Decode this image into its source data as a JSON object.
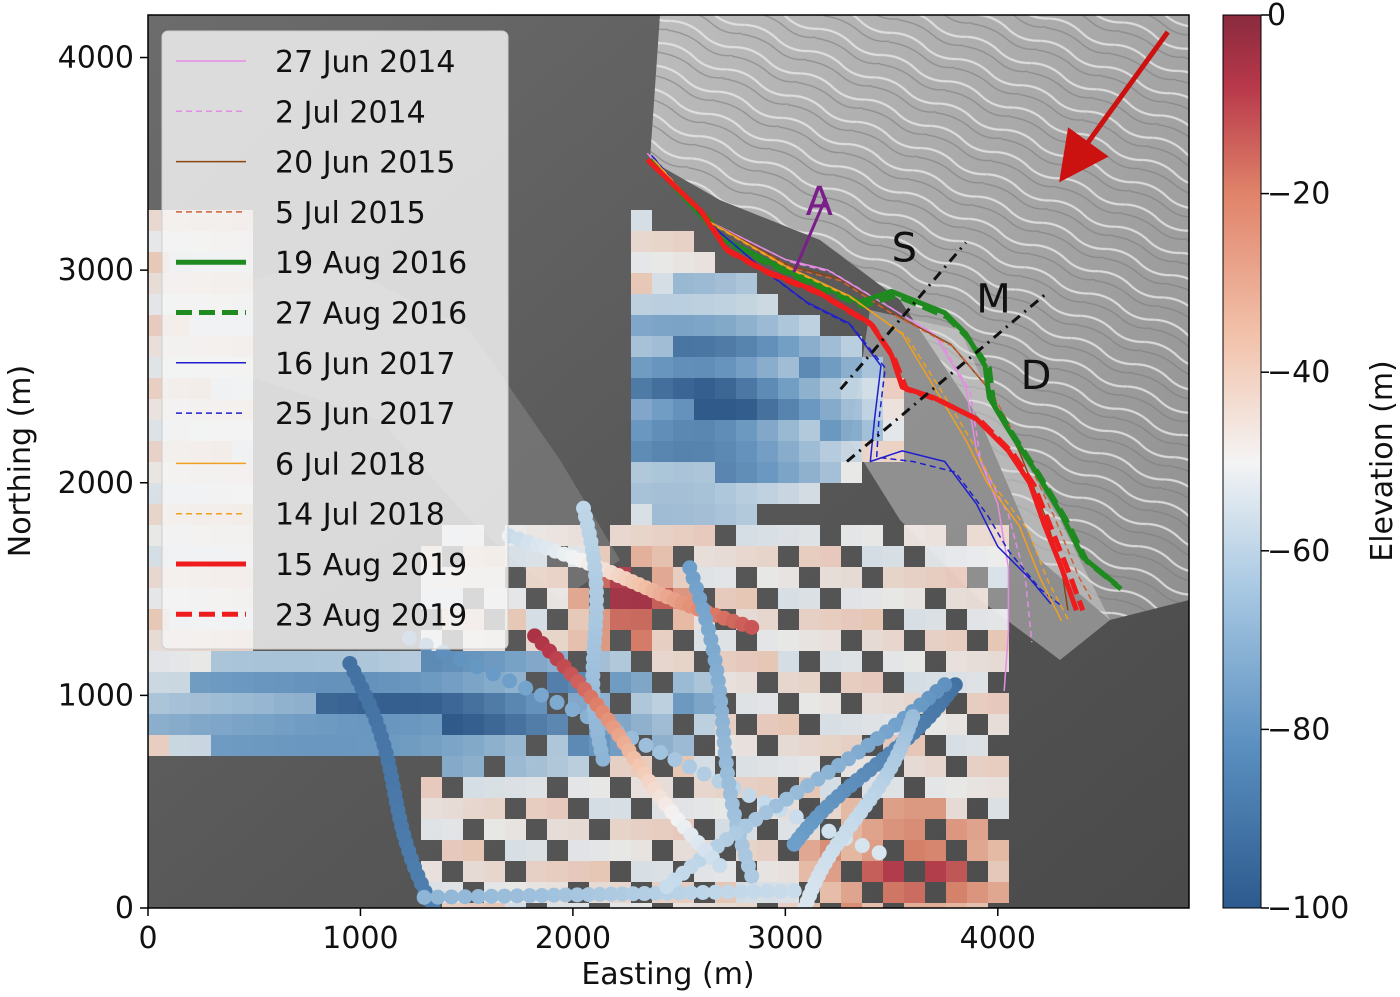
{
  "chart_data": {
    "type": "map",
    "xlabel": "Easting (m)",
    "ylabel": "Northing (m)",
    "xlim": [
      0,
      4900
    ],
    "ylim": [
      0,
      4200
    ],
    "x_ticks": [
      0,
      1000,
      2000,
      3000,
      4000
    ],
    "y_ticks": [
      0,
      1000,
      2000,
      3000,
      4000
    ],
    "colorbar": {
      "label": "Elevation (m)",
      "range": [
        -100,
        0
      ],
      "ticks": [
        0,
        -20,
        -40,
        -60,
        -80,
        -100
      ],
      "tick_labels": [
        "0",
        "−20",
        "−40",
        "−60",
        "−80",
        "−100"
      ],
      "colormap": [
        "#2d5a8e",
        "#6a9cc8",
        "#c3d9ea",
        "#f4f4f4",
        "#f2c2aa",
        "#e0836a",
        "#b8384a",
        "#8a2a3e"
      ]
    },
    "legend_position": "upper-left",
    "series": [
      {
        "name": "27 Jun 2014",
        "color": "#e38de3",
        "dash": "solid",
        "width": 1.5,
        "points": [
          [
            2350,
            3550
          ],
          [
            2600,
            3250
          ],
          [
            3000,
            3050
          ],
          [
            3200,
            3000
          ],
          [
            3450,
            2850
          ],
          [
            3700,
            2700
          ],
          [
            3850,
            2450
          ],
          [
            3900,
            2150
          ],
          [
            4000,
            1900
          ],
          [
            4050,
            1600
          ],
          [
            4050,
            1300
          ],
          [
            4030,
            1020
          ]
        ]
      },
      {
        "name": "2 Jul 2014",
        "color": "#e38de3",
        "dash": "dashed",
        "width": 1.5,
        "points": [
          [
            2360,
            3540
          ],
          [
            2620,
            3240
          ],
          [
            3020,
            3040
          ],
          [
            3220,
            2990
          ],
          [
            3470,
            2840
          ],
          [
            3720,
            2680
          ],
          [
            3870,
            2430
          ],
          [
            3920,
            2100
          ],
          [
            4050,
            1850
          ],
          [
            4130,
            1550
          ],
          [
            4160,
            1250
          ]
        ]
      },
      {
        "name": "20 Jun 2015",
        "color": "#8b4513",
        "dash": "solid",
        "width": 1.5,
        "points": [
          [
            2380,
            3520
          ],
          [
            2640,
            3230
          ],
          [
            3020,
            3020
          ],
          [
            3250,
            2960
          ],
          [
            3500,
            2800
          ],
          [
            3780,
            2650
          ],
          [
            3950,
            2450
          ],
          [
            4100,
            2150
          ],
          [
            4220,
            1850
          ],
          [
            4300,
            1600
          ],
          [
            4330,
            1400
          ]
        ]
      },
      {
        "name": "5 Jul 2015",
        "color": "#c8643c",
        "dash": "dashed",
        "width": 1.5,
        "points": [
          [
            2390,
            3510
          ],
          [
            2650,
            3220
          ],
          [
            3030,
            3010
          ],
          [
            3260,
            2950
          ],
          [
            3510,
            2790
          ],
          [
            3790,
            2640
          ],
          [
            3970,
            2430
          ],
          [
            4130,
            2130
          ],
          [
            4270,
            1830
          ],
          [
            4380,
            1560
          ],
          [
            4440,
            1450
          ]
        ]
      },
      {
        "name": "19 Aug 2016",
        "color": "#1f8a1f",
        "dash": "solid",
        "width": 5,
        "points": [
          [
            2360,
            3520
          ],
          [
            2600,
            3260
          ],
          [
            2700,
            3150
          ],
          [
            3000,
            3000
          ],
          [
            3350,
            2850
          ],
          [
            3500,
            2900
          ],
          [
            3750,
            2800
          ],
          [
            3850,
            2700
          ],
          [
            3940,
            2550
          ],
          [
            3960,
            2400
          ],
          [
            4050,
            2250
          ],
          [
            4180,
            2050
          ],
          [
            4300,
            1850
          ],
          [
            4400,
            1650
          ],
          [
            4560,
            1520
          ]
        ]
      },
      {
        "name": "27 Aug 2016",
        "color": "#1f8a1f",
        "dash": "dashed",
        "width": 5,
        "points": [
          [
            2380,
            3500
          ],
          [
            2640,
            3240
          ],
          [
            2720,
            3130
          ],
          [
            3020,
            2980
          ],
          [
            3360,
            2830
          ],
          [
            3520,
            2880
          ],
          [
            3760,
            2780
          ],
          [
            3860,
            2680
          ],
          [
            3960,
            2540
          ],
          [
            3980,
            2380
          ],
          [
            4070,
            2230
          ],
          [
            4200,
            2030
          ],
          [
            4320,
            1830
          ],
          [
            4420,
            1630
          ],
          [
            4580,
            1500
          ]
        ]
      },
      {
        "name": "16 Jun 2017",
        "color": "#1f1fcc",
        "dash": "solid",
        "width": 1.5,
        "points": [
          [
            2370,
            3540
          ],
          [
            2620,
            3240
          ],
          [
            2900,
            3000
          ],
          [
            3100,
            2850
          ],
          [
            3300,
            2750
          ],
          [
            3450,
            2550
          ],
          [
            3420,
            2300
          ],
          [
            3400,
            2100
          ],
          [
            3550,
            2150
          ],
          [
            3750,
            2100
          ],
          [
            3900,
            1900
          ],
          [
            4000,
            1700
          ],
          [
            4150,
            1550
          ],
          [
            4250,
            1430
          ]
        ]
      },
      {
        "name": "25 Jun 2017",
        "color": "#1f1fcc",
        "dash": "dashed",
        "width": 1.5,
        "points": [
          [
            2380,
            3530
          ],
          [
            2630,
            3230
          ],
          [
            2910,
            2990
          ],
          [
            3110,
            2840
          ],
          [
            3310,
            2740
          ],
          [
            3470,
            2540
          ],
          [
            3440,
            2290
          ],
          [
            3430,
            2120
          ],
          [
            3600,
            2100
          ],
          [
            3800,
            2050
          ],
          [
            3950,
            1850
          ],
          [
            4050,
            1680
          ],
          [
            4200,
            1500
          ],
          [
            4300,
            1420
          ]
        ]
      },
      {
        "name": "6 Jul 2018",
        "color": "#f0a020",
        "dash": "solid",
        "width": 1.5,
        "points": [
          [
            2380,
            3520
          ],
          [
            2640,
            3230
          ],
          [
            3000,
            3020
          ],
          [
            3300,
            2880
          ],
          [
            3550,
            2700
          ],
          [
            3700,
            2450
          ],
          [
            3850,
            2200
          ],
          [
            3950,
            2000
          ],
          [
            4100,
            1800
          ],
          [
            4200,
            1550
          ],
          [
            4300,
            1350
          ]
        ]
      },
      {
        "name": "14 Jul 2018",
        "color": "#f0a020",
        "dash": "dashed",
        "width": 1.5,
        "points": [
          [
            2390,
            3510
          ],
          [
            2650,
            3220
          ],
          [
            3010,
            3010
          ],
          [
            3310,
            2870
          ],
          [
            3570,
            2690
          ],
          [
            3730,
            2440
          ],
          [
            3880,
            2190
          ],
          [
            3980,
            1990
          ],
          [
            4140,
            1780
          ],
          [
            4240,
            1530
          ],
          [
            4340,
            1340
          ]
        ]
      },
      {
        "name": "15 Aug 2019",
        "color": "#ee1c1c",
        "dash": "solid",
        "width": 5,
        "points": [
          [
            2350,
            3520
          ],
          [
            2600,
            3280
          ],
          [
            2720,
            3100
          ],
          [
            2900,
            3000
          ],
          [
            3150,
            2900
          ],
          [
            3400,
            2750
          ],
          [
            3500,
            2600
          ],
          [
            3550,
            2450
          ],
          [
            3700,
            2400
          ],
          [
            3900,
            2300
          ],
          [
            4050,
            2150
          ],
          [
            4150,
            2000
          ],
          [
            4220,
            1800
          ],
          [
            4300,
            1600
          ],
          [
            4370,
            1400
          ]
        ]
      },
      {
        "name": "23 Aug 2019",
        "color": "#ee1c1c",
        "dash": "dashed",
        "width": 5,
        "points": [
          [
            2360,
            3510
          ],
          [
            2610,
            3270
          ],
          [
            2730,
            3090
          ],
          [
            2910,
            2990
          ],
          [
            3160,
            2890
          ],
          [
            3410,
            2740
          ],
          [
            3510,
            2590
          ],
          [
            3570,
            2440
          ],
          [
            3720,
            2390
          ],
          [
            3920,
            2290
          ],
          [
            4070,
            2140
          ],
          [
            4170,
            1990
          ],
          [
            4250,
            1790
          ],
          [
            4330,
            1590
          ],
          [
            4400,
            1400
          ]
        ]
      }
    ],
    "annotations": [
      {
        "text": "A",
        "x": 3160,
        "y": 3260,
        "color": "#7a1f8a"
      },
      {
        "text": "S",
        "x": 3560,
        "y": 3040,
        "color": "#111111"
      },
      {
        "text": "M",
        "x": 3980,
        "y": 2800,
        "color": "#111111"
      },
      {
        "text": "D",
        "x": 4180,
        "y": 2440,
        "color": "#111111"
      }
    ],
    "transects": [
      {
        "points": [
          [
            3040,
            2990
          ],
          [
            3190,
            3340
          ]
        ],
        "color": "#7a1f8a",
        "dash": "solid"
      },
      {
        "points": [
          [
            3260,
            2440
          ],
          [
            3850,
            3130
          ]
        ],
        "color": "#111111",
        "dash": "dashed"
      },
      {
        "points": [
          [
            3290,
            2100
          ],
          [
            4240,
            2900
          ]
        ],
        "color": "#111111",
        "dash": "dashed"
      }
    ],
    "ice_flow_arrow": {
      "from": [
        4800,
        4120
      ],
      "to": [
        4330,
        3470
      ],
      "color": "#cc1111"
    }
  }
}
